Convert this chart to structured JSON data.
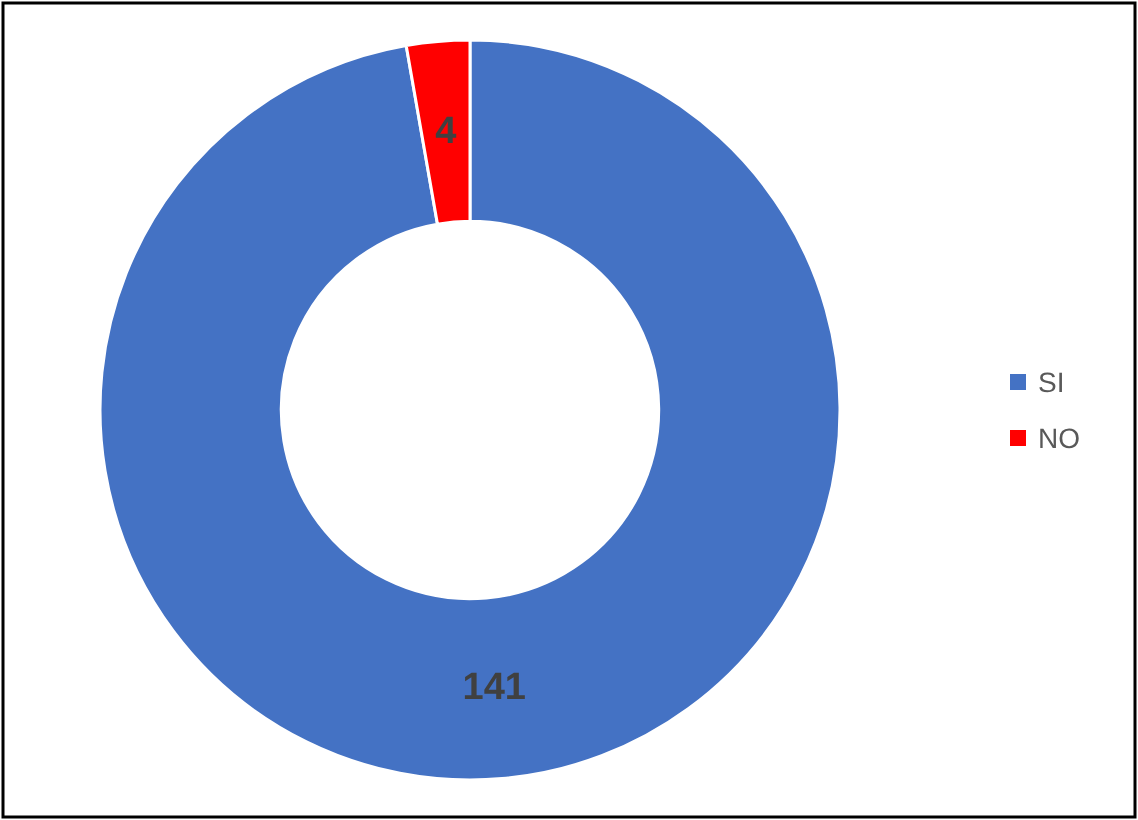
{
  "chart_data": {
    "type": "donut",
    "categories": [
      "SI",
      "NO"
    ],
    "values": [
      141,
      4
    ],
    "colors": [
      "#4472c4",
      "#ff0000"
    ],
    "data_labels": true,
    "legend": "right"
  }
}
